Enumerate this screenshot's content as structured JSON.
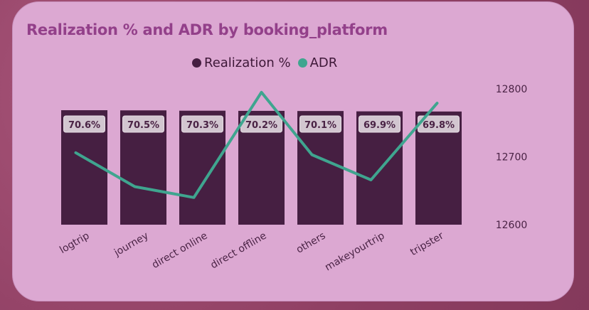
{
  "chart_data": {
    "type": "bar",
    "title": "Realization % and ADR by booking_platform",
    "categories": [
      "logtrip",
      "journey",
      "direct online",
      "direct offline",
      "others",
      "makeyourtrip",
      "tripster"
    ],
    "series": [
      {
        "name": "Realization %",
        "type": "bar",
        "values": [
          70.6,
          70.5,
          70.3,
          70.2,
          70.1,
          69.9,
          69.8
        ],
        "data_labels": [
          "70.6%",
          "70.5%",
          "70.3%",
          "70.2%",
          "70.1%",
          "69.9%",
          "69.8%"
        ],
        "color": "#461f42"
      },
      {
        "name": "ADR",
        "type": "line",
        "axis": "right",
        "values": [
          12706,
          12656,
          12640,
          12795,
          12703,
          12666,
          12779
        ],
        "color": "#3fa58f"
      }
    ],
    "y2_ticks": [
      12600,
      12700,
      12800
    ],
    "y2lim": [
      12600,
      12800
    ],
    "legend": "top-center",
    "grid": false
  }
}
